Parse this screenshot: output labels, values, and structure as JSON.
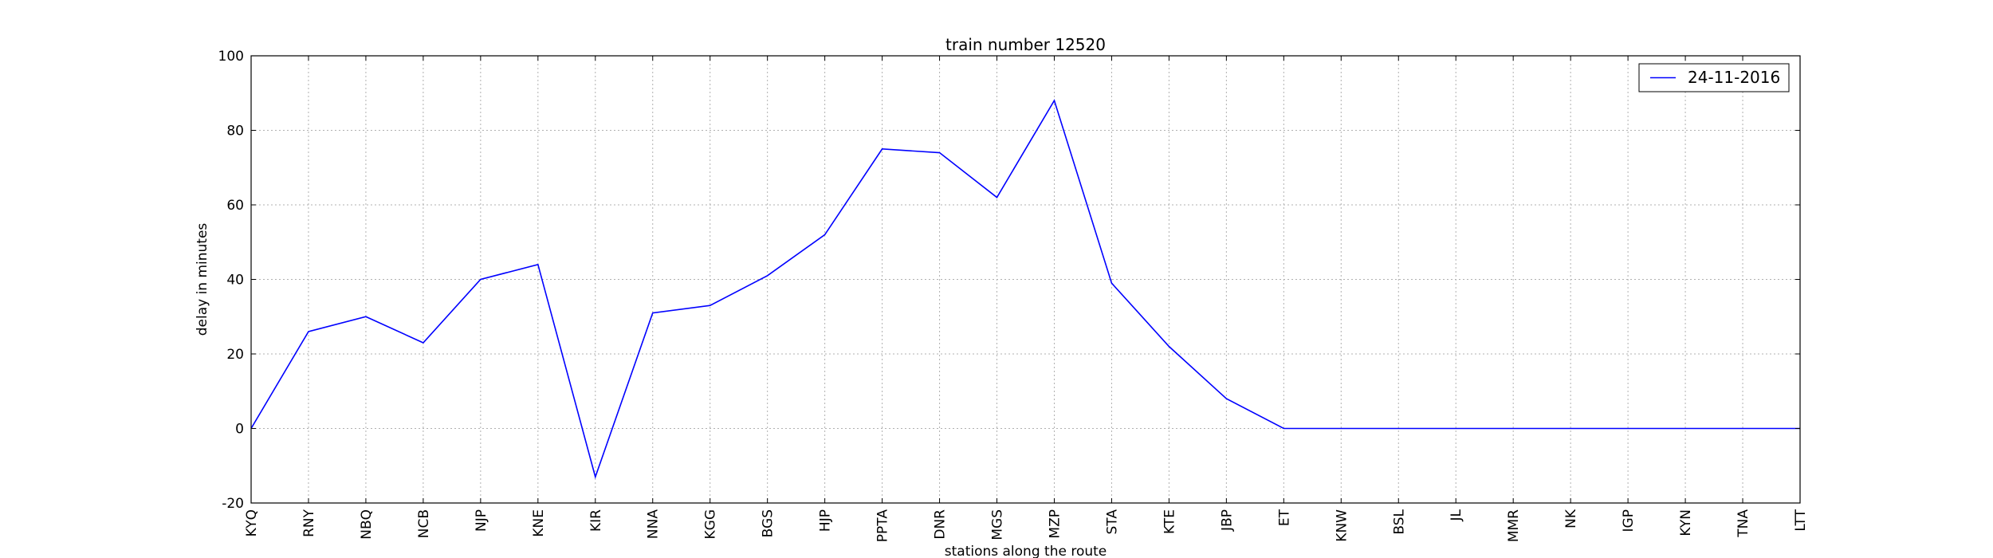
{
  "chart_data": {
    "type": "line",
    "title": "train number 12520",
    "xlabel": "stations along the route",
    "ylabel": "delay in minutes",
    "categories": [
      "KYQ",
      "RNY",
      "NBQ",
      "NCB",
      "NJP",
      "KNE",
      "KIR",
      "NNA",
      "KGG",
      "BGS",
      "HJP",
      "PPTA",
      "DNR",
      "MGS",
      "MZP",
      "STA",
      "KTE",
      "JBP",
      "ET",
      "KNW",
      "BSL",
      "JL",
      "MMR",
      "NK",
      "IGP",
      "KYN",
      "TNA",
      "LTT"
    ],
    "ylim": [
      -20,
      100
    ],
    "yticks": [
      -20,
      0,
      20,
      40,
      60,
      80,
      100
    ],
    "grid": true,
    "legend_position": "top-right",
    "series": [
      {
        "name": "24-11-2016",
        "color": "#0000ff",
        "values": [
          0,
          26,
          30,
          23,
          40,
          44,
          -13,
          31,
          33,
          41,
          52,
          75,
          74,
          62,
          88,
          39,
          22,
          8,
          0,
          0,
          0,
          0,
          0,
          0,
          0,
          0,
          0,
          0
        ]
      }
    ]
  }
}
